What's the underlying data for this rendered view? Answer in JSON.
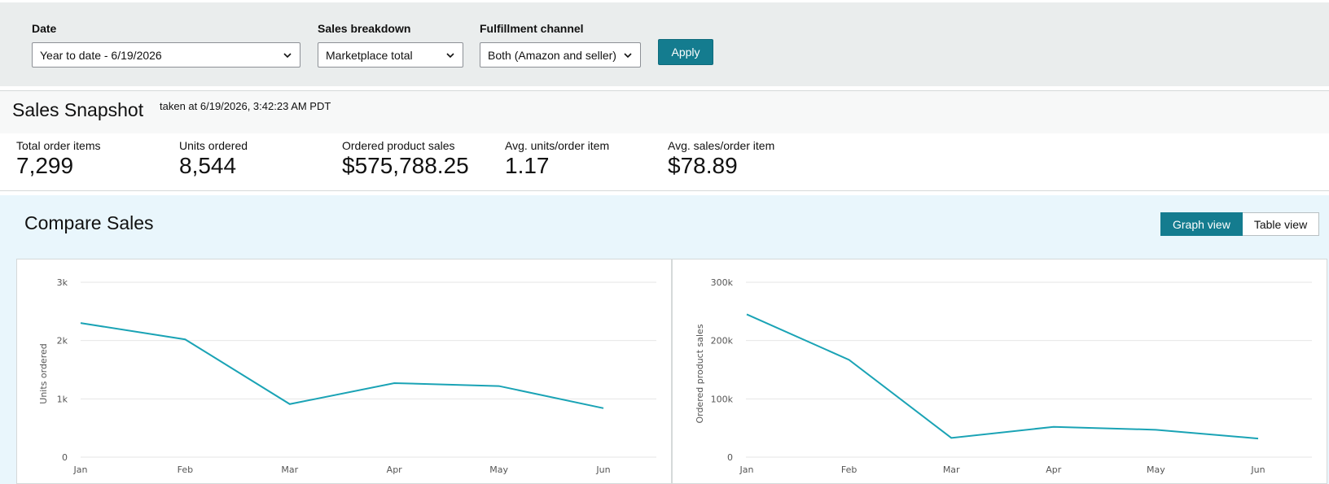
{
  "filters": {
    "date": {
      "label": "Date",
      "value": "Year to date - 6/19/2026"
    },
    "sales_breakdown": {
      "label": "Sales breakdown",
      "value": "Marketplace total"
    },
    "fulfillment": {
      "label": "Fulfillment channel",
      "value": "Both (Amazon and seller)"
    },
    "apply_label": "Apply"
  },
  "snapshot": {
    "title": "Sales Snapshot",
    "taken": "taken at 6/19/2026, 3:42:23 AM PDT",
    "metrics": [
      {
        "label": "Total order items",
        "value": "7,299"
      },
      {
        "label": "Units ordered",
        "value": "8,544"
      },
      {
        "label": "Ordered product sales",
        "value": "$575,788.25"
      },
      {
        "label": "Avg. units/order item",
        "value": "1.17"
      },
      {
        "label": "Avg. sales/order item",
        "value": "$78.89"
      }
    ]
  },
  "compare": {
    "title": "Compare Sales",
    "graph_view_label": "Graph view",
    "table_view_label": "Table view"
  },
  "colors": {
    "accent": "#147c8f",
    "line": "#1aa3b5"
  },
  "chart_data": [
    {
      "type": "line",
      "categories": [
        "Jan",
        "Feb",
        "Mar",
        "Apr",
        "May",
        "Jun"
      ],
      "series": [
        {
          "values": [
            2300,
            2020,
            910,
            1270,
            1220,
            840
          ]
        }
      ],
      "ylabel": "Units ordered",
      "ylim": [
        0,
        3000
      ],
      "yticks": [
        {
          "v": 0,
          "label": "0"
        },
        {
          "v": 1000,
          "label": "1k"
        },
        {
          "v": 2000,
          "label": "2k"
        },
        {
          "v": 3000,
          "label": "3k"
        }
      ],
      "grid": true
    },
    {
      "type": "line",
      "categories": [
        "Jan",
        "Feb",
        "Mar",
        "Apr",
        "May",
        "Jun"
      ],
      "series": [
        {
          "values": [
            245000,
            167000,
            33000,
            52000,
            47000,
            32000
          ]
        }
      ],
      "ylabel": "Ordered product sales",
      "ylim": [
        0,
        300000
      ],
      "yticks": [
        {
          "v": 0,
          "label": "0"
        },
        {
          "v": 100000,
          "label": "100k"
        },
        {
          "v": 200000,
          "label": "200k"
        },
        {
          "v": 300000,
          "label": "300k"
        }
      ],
      "grid": true
    }
  ]
}
